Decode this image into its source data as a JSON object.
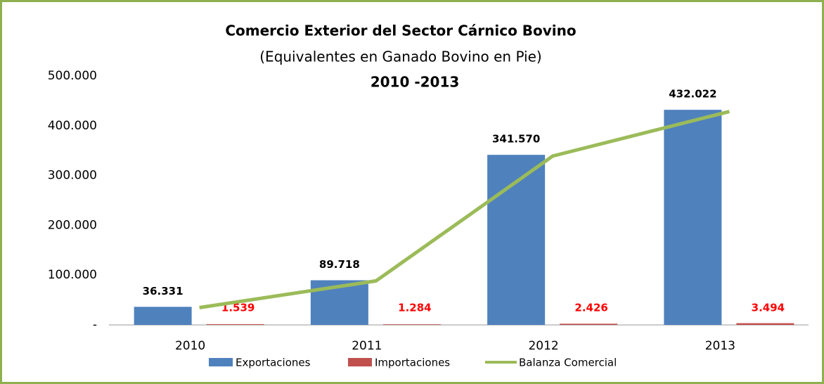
{
  "chart_data": {
    "type": "bar",
    "title": "Comercio Exterior del Sector Cárnico Bovino",
    "subtitle": "(Equivalentes en Ganado Bovino en Pie)",
    "period": "2010 -2013",
    "categories": [
      "2010",
      "2011",
      "2012",
      "2013"
    ],
    "series": [
      {
        "name": "Exportaciones",
        "color": "#4f81bd",
        "kind": "bar",
        "values": [
          36331,
          89718,
          341570,
          432022
        ],
        "value_labels": [
          "36.331",
          "89.718",
          "341.570",
          "432.022"
        ]
      },
      {
        "name": "Importaciones",
        "color": "#c0504d",
        "kind": "bar",
        "values": [
          1539,
          1284,
          2426,
          3494
        ],
        "value_labels": [
          "1.539",
          "1.284",
          "2.426",
          "3.494"
        ]
      },
      {
        "name": "Balanza Comercial",
        "color": "#9bbb59",
        "kind": "line",
        "values": [
          34792,
          88434,
          339144,
          428528
        ]
      }
    ],
    "ylim": [
      0,
      500000
    ],
    "yticks": [
      {
        "value": 0,
        "label": "-"
      },
      {
        "value": 100000,
        "label": "100.000"
      },
      {
        "value": 200000,
        "label": "200.000"
      },
      {
        "value": 300000,
        "label": "300.000"
      },
      {
        "value": 400000,
        "label": "400.000"
      },
      {
        "value": 500000,
        "label": "500.000"
      }
    ],
    "grid": false
  }
}
